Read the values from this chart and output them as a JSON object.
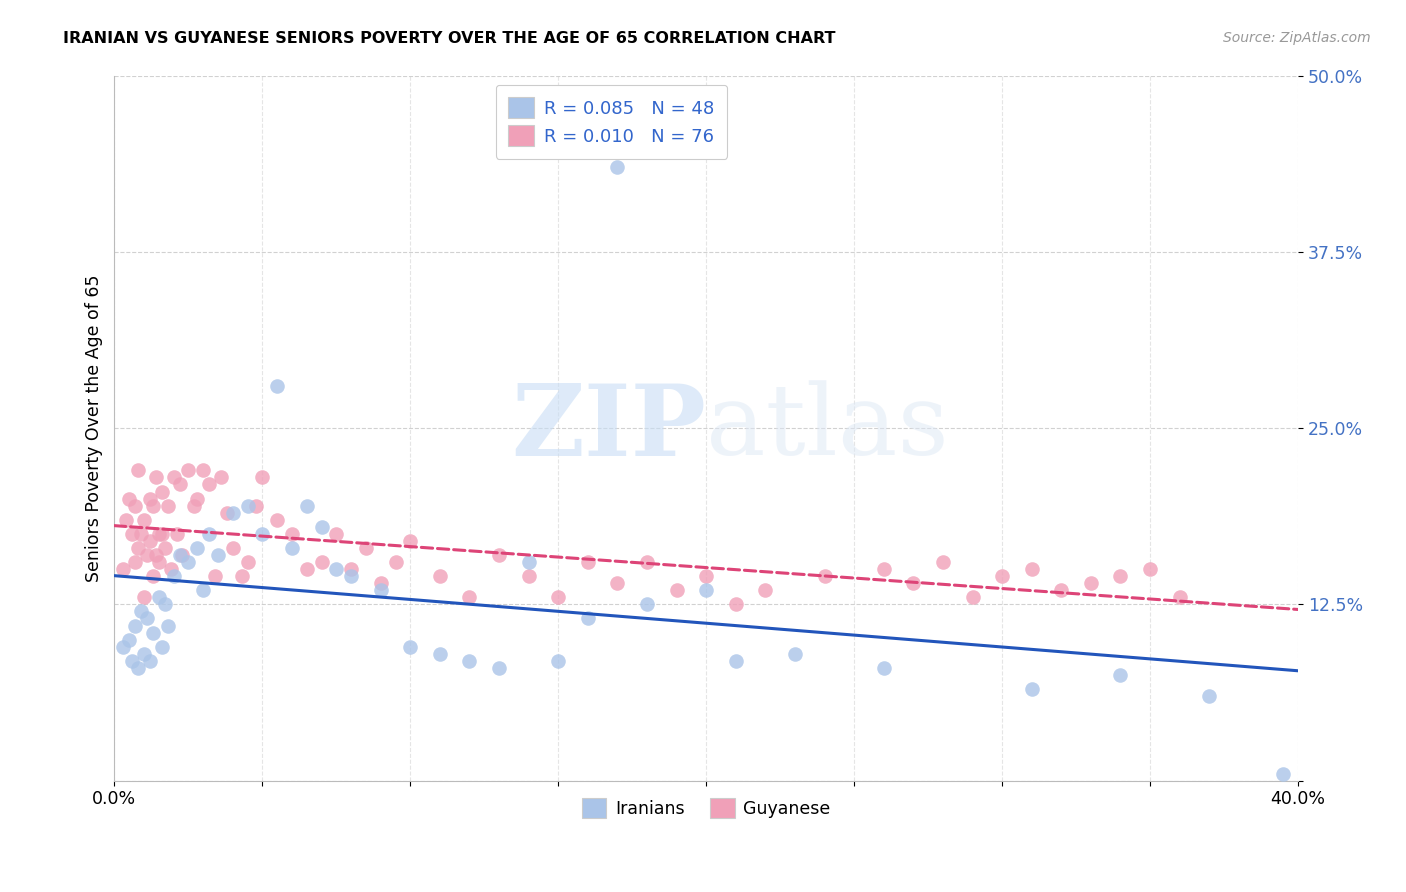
{
  "title": "IRANIAN VS GUYANESE SENIORS POVERTY OVER THE AGE OF 65 CORRELATION CHART",
  "source": "Source: ZipAtlas.com",
  "ylabel": "Seniors Poverty Over the Age of 65",
  "xlabel_iranians": "Iranians",
  "xlabel_guyanese": "Guyanese",
  "xlim": [
    0.0,
    0.4
  ],
  "ylim": [
    0.0,
    0.5
  ],
  "ytick_vals": [
    0.0,
    0.125,
    0.25,
    0.375,
    0.5
  ],
  "ytick_labels": [
    "",
    "12.5%",
    "25.0%",
    "37.5%",
    "50.0%"
  ],
  "xtick_vals": [
    0.0,
    0.05,
    0.1,
    0.15,
    0.2,
    0.25,
    0.3,
    0.35,
    0.4
  ],
  "xtick_labels": [
    "0.0%",
    "",
    "",
    "",
    "",
    "",
    "",
    "",
    "40.0%"
  ],
  "grid_color": "#cccccc",
  "iranian_color": "#aac4e8",
  "guyanese_color": "#f0a0b8",
  "iranian_line_color": "#2255bb",
  "guyanese_line_color": "#dd4477",
  "legend_iranian": "R = 0.085   N = 48",
  "legend_guyanese": "R = 0.010   N = 76",
  "watermark_zip": "ZIP",
  "watermark_atlas": "atlas",
  "iranians_x": [
    0.003,
    0.005,
    0.006,
    0.007,
    0.008,
    0.009,
    0.01,
    0.011,
    0.012,
    0.013,
    0.015,
    0.016,
    0.017,
    0.018,
    0.02,
    0.022,
    0.025,
    0.028,
    0.03,
    0.032,
    0.035,
    0.04,
    0.045,
    0.05,
    0.055,
    0.06,
    0.065,
    0.07,
    0.075,
    0.08,
    0.09,
    0.1,
    0.11,
    0.12,
    0.13,
    0.14,
    0.15,
    0.16,
    0.17,
    0.18,
    0.2,
    0.21,
    0.23,
    0.26,
    0.31,
    0.34,
    0.37,
    0.395
  ],
  "iranians_y": [
    0.095,
    0.1,
    0.085,
    0.11,
    0.08,
    0.12,
    0.09,
    0.115,
    0.085,
    0.105,
    0.13,
    0.095,
    0.125,
    0.11,
    0.145,
    0.16,
    0.155,
    0.165,
    0.135,
    0.175,
    0.16,
    0.19,
    0.195,
    0.175,
    0.28,
    0.165,
    0.195,
    0.18,
    0.15,
    0.145,
    0.135,
    0.095,
    0.09,
    0.085,
    0.08,
    0.155,
    0.085,
    0.115,
    0.435,
    0.125,
    0.135,
    0.085,
    0.09,
    0.08,
    0.065,
    0.075,
    0.06,
    0.005
  ],
  "guyanese_x": [
    0.003,
    0.004,
    0.005,
    0.006,
    0.007,
    0.007,
    0.008,
    0.008,
    0.009,
    0.01,
    0.01,
    0.011,
    0.012,
    0.012,
    0.013,
    0.013,
    0.014,
    0.014,
    0.015,
    0.015,
    0.016,
    0.016,
    0.017,
    0.018,
    0.019,
    0.02,
    0.021,
    0.022,
    0.023,
    0.025,
    0.027,
    0.028,
    0.03,
    0.032,
    0.034,
    0.036,
    0.038,
    0.04,
    0.043,
    0.045,
    0.048,
    0.05,
    0.055,
    0.06,
    0.065,
    0.07,
    0.075,
    0.08,
    0.085,
    0.09,
    0.095,
    0.1,
    0.11,
    0.12,
    0.13,
    0.14,
    0.15,
    0.16,
    0.17,
    0.18,
    0.19,
    0.2,
    0.21,
    0.22,
    0.24,
    0.26,
    0.27,
    0.28,
    0.29,
    0.3,
    0.31,
    0.32,
    0.33,
    0.34,
    0.35,
    0.36
  ],
  "guyanese_y": [
    0.15,
    0.185,
    0.2,
    0.175,
    0.155,
    0.195,
    0.165,
    0.22,
    0.175,
    0.185,
    0.13,
    0.16,
    0.17,
    0.2,
    0.145,
    0.195,
    0.16,
    0.215,
    0.175,
    0.155,
    0.175,
    0.205,
    0.165,
    0.195,
    0.15,
    0.215,
    0.175,
    0.21,
    0.16,
    0.22,
    0.195,
    0.2,
    0.22,
    0.21,
    0.145,
    0.215,
    0.19,
    0.165,
    0.145,
    0.155,
    0.195,
    0.215,
    0.185,
    0.175,
    0.15,
    0.155,
    0.175,
    0.15,
    0.165,
    0.14,
    0.155,
    0.17,
    0.145,
    0.13,
    0.16,
    0.145,
    0.13,
    0.155,
    0.14,
    0.155,
    0.135,
    0.145,
    0.125,
    0.135,
    0.145,
    0.15,
    0.14,
    0.155,
    0.13,
    0.145,
    0.15,
    0.135,
    0.14,
    0.145,
    0.15,
    0.13
  ]
}
